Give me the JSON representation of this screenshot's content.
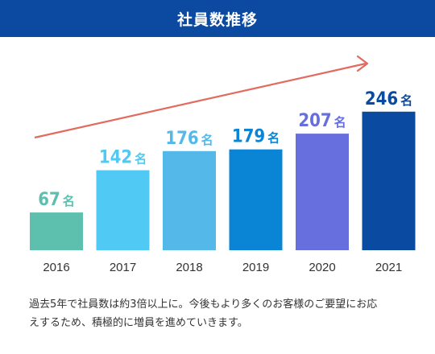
{
  "header": {
    "title": "社員数推移"
  },
  "chart_data": {
    "type": "bar",
    "title": "",
    "categories": [
      "2016",
      "2017",
      "2018",
      "2019",
      "2020",
      "2021"
    ],
    "values": [
      67,
      142,
      176,
      179,
      207,
      246
    ],
    "unit": "名",
    "colors": [
      "#5dbfad",
      "#51c9f5",
      "#54b8e9",
      "#0a84d4",
      "#676edd",
      "#0a4aa0"
    ],
    "trend_arrow_color": "#e26a5e",
    "xlabel": "",
    "ylabel": "",
    "ylim": [
      0,
      250
    ],
    "grid": false,
    "legend": "none"
  },
  "description": {
    "line1": "過去5年で社員数は約3倍以上に。今後もより多くのお客様のご要望にお応",
    "line2": "えするため、積極的に増員を進めていきます。"
  }
}
